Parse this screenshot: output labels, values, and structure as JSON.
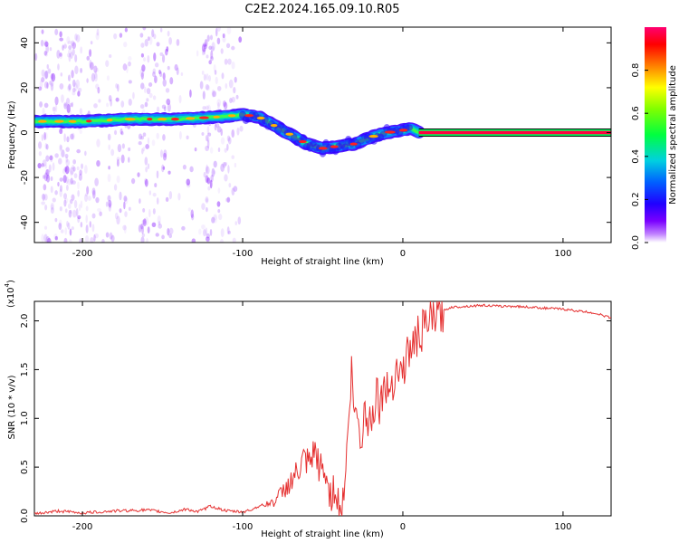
{
  "figure_title": "C2E2.2024.165.09.10.R05",
  "colors": {
    "snr_line": "#e53030",
    "colorbar_stops": [
      "#7a00ff",
      "#3a00ff",
      "#0000ff",
      "#0090ff",
      "#00e0e0",
      "#00ff40",
      "#80ff00",
      "#ffff00",
      "#ff8000",
      "#ff0000",
      "#ff0060"
    ]
  },
  "chart_data": [
    {
      "type": "heatmap",
      "title": "C2E2.2024.165.09.10.R05",
      "xlabel": "Height of straight line (km)",
      "ylabel": "Frequency (Hz)",
      "xlim": [
        -230,
        130
      ],
      "ylim": [
        -49,
        47
      ],
      "xticks": [
        -200,
        -100,
        0,
        100
      ],
      "yticks": [
        -40,
        -20,
        0,
        20,
        40
      ],
      "ridge_frequency": {
        "x": [
          -230,
          -200,
          -170,
          -140,
          -115,
          -100,
          -90,
          -80,
          -70,
          -60,
          -50,
          -40,
          -30,
          -20,
          -10,
          0,
          5,
          10,
          130
        ],
        "y": [
          5,
          5,
          6,
          6,
          7,
          8,
          7,
          3,
          -1,
          -5,
          -7,
          -6,
          -5,
          -2,
          0,
          1,
          2,
          0,
          0
        ]
      },
      "colorbar": {
        "label": "Normalized spectral amplitude",
        "range": [
          0,
          1
        ],
        "ticks": [
          0.0,
          0.2,
          0.4,
          0.6,
          0.8
        ]
      }
    },
    {
      "type": "line",
      "xlabel": "Height of straight line (km)",
      "ylabel": "SNR (10 * v/v)",
      "y_multiplier": "(x10",
      "y_multiplier_exp": "4",
      "y_multiplier_close": ")",
      "xlim": [
        -230,
        130
      ],
      "ylim": [
        0,
        2.2
      ],
      "xticks": [
        -200,
        -100,
        0,
        100
      ],
      "yticks": [
        "0.0",
        "0.5",
        "1.0",
        "1.5",
        "2.0"
      ],
      "series": [
        {
          "x": [
            -230,
            -215,
            -200,
            -180,
            -160,
            -145,
            -135,
            -128,
            -120,
            -110,
            -100,
            -95,
            -90,
            -85,
            -80,
            -75,
            -70,
            -65,
            -62,
            -58,
            -55,
            -52,
            -48,
            -45,
            -42,
            -40,
            -38,
            -36,
            -34,
            -32,
            -30,
            -28,
            -26,
            -24,
            -22,
            -20,
            -18,
            -16,
            -14,
            -12,
            -10,
            -8,
            -6,
            -4,
            -2,
            0,
            3,
            6,
            10,
            15,
            20,
            25,
            30,
            40,
            50,
            60,
            70,
            80,
            90,
            100,
            110,
            120,
            130
          ],
          "y": [
            0.02,
            0.05,
            0.03,
            0.05,
            0.06,
            0.03,
            0.07,
            0.04,
            0.1,
            0.05,
            0.04,
            0.06,
            0.1,
            0.12,
            0.15,
            0.25,
            0.35,
            0.45,
            0.55,
            0.5,
            0.65,
            0.5,
            0.4,
            0.2,
            0.3,
            0.1,
            0.05,
            0.4,
            0.9,
            1.5,
            0.95,
            1.1,
            0.6,
            1.3,
            0.9,
            1.0,
            1.15,
            1.3,
            1.1,
            1.4,
            1.25,
            1.35,
            1.4,
            1.55,
            1.45,
            1.5,
            1.65,
            1.75,
            1.85,
            1.95,
            2.05,
            2.1,
            2.14,
            2.15,
            2.16,
            2.15,
            2.15,
            2.14,
            2.13,
            2.12,
            2.1,
            2.08,
            2.03
          ]
        }
      ]
    }
  ]
}
